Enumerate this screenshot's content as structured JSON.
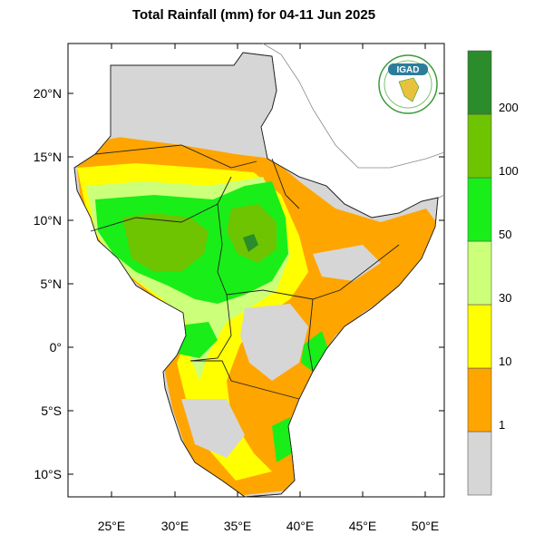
{
  "title": "Total Rainfall (mm) for 04-11 Jun 2025",
  "logo": {
    "text": "IGAD",
    "icon": "igad-logo"
  },
  "axes": {
    "lat_ticks": [
      "20°N",
      "15°N",
      "10°N",
      "5°N",
      "0°",
      "5°S",
      "10°S"
    ],
    "lon_ticks": [
      "25°E",
      "30°E",
      "35°E",
      "40°E",
      "45°E",
      "50°E"
    ]
  },
  "colorbar": {
    "bins": [
      {
        "color": "#d6d6d6",
        "label": ""
      },
      {
        "color": "#ffa500",
        "label": "1"
      },
      {
        "color": "#ffff00",
        "label": "10"
      },
      {
        "color": "#ccff7a",
        "label": "30"
      },
      {
        "color": "#19ee19",
        "label": "50"
      },
      {
        "color": "#6ec400",
        "label": "100"
      },
      {
        "color": "#2a8c2a",
        "label": "200"
      }
    ]
  },
  "colors": {
    "no_rain": "#d6d6d6",
    "light": "#ffa500",
    "moderate": "#ffff00",
    "heavy": "#19ee19",
    "very_heavy": "#6ec400"
  }
}
